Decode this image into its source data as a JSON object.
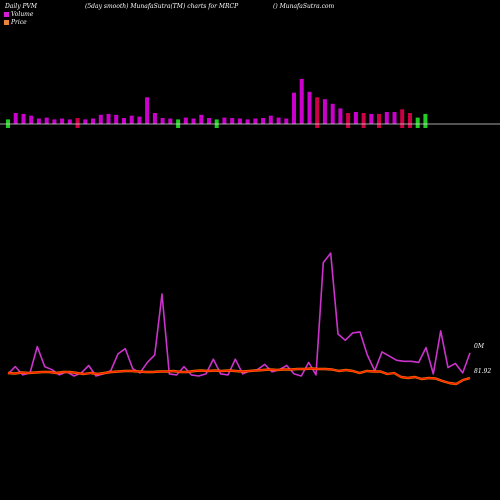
{
  "header": {
    "left": "Daily PVM",
    "center": "(5day smooth) MunafaSutra(TM) charts for MRCP",
    "right": "() MunafaSutra.com"
  },
  "legend": [
    {
      "label": "Volume",
      "color": "#d81bd8"
    },
    {
      "label": "Price",
      "color": "#e8843c"
    }
  ],
  "right_labels": {
    "volume": "0M",
    "price": "81.92"
  },
  "colors": {
    "volume_up": "#cc00cc",
    "volume_down_red": "#cc0044",
    "volume_down_green": "#22cc22",
    "volume_line": "#cc33cc",
    "price_line": "#ff2200",
    "price_line_highlight": "#ff8800",
    "baseline": "#dddddd"
  },
  "chart_data": {
    "type": "bar",
    "bars": [
      {
        "v": 1.0,
        "c": "g"
      },
      {
        "v": 2.4,
        "c": "m"
      },
      {
        "v": 2.2,
        "c": "m"
      },
      {
        "v": 1.8,
        "c": "m"
      },
      {
        "v": 1.2,
        "c": "m"
      },
      {
        "v": 1.4,
        "c": "m"
      },
      {
        "v": 1.0,
        "c": "m"
      },
      {
        "v": 1.2,
        "c": "m"
      },
      {
        "v": 1.0,
        "c": "m"
      },
      {
        "v": 1.3,
        "c": "r"
      },
      {
        "v": 1.0,
        "c": "m"
      },
      {
        "v": 1.2,
        "c": "m"
      },
      {
        "v": 2.0,
        "c": "m"
      },
      {
        "v": 2.2,
        "c": "m"
      },
      {
        "v": 2.0,
        "c": "m"
      },
      {
        "v": 1.3,
        "c": "m"
      },
      {
        "v": 1.8,
        "c": "m"
      },
      {
        "v": 1.6,
        "c": "m"
      },
      {
        "v": 5.8,
        "c": "m"
      },
      {
        "v": 2.4,
        "c": "m"
      },
      {
        "v": 1.3,
        "c": "m"
      },
      {
        "v": 1.2,
        "c": "m"
      },
      {
        "v": 1.0,
        "c": "g"
      },
      {
        "v": 1.4,
        "c": "m"
      },
      {
        "v": 1.2,
        "c": "m"
      },
      {
        "v": 2.0,
        "c": "m"
      },
      {
        "v": 1.3,
        "c": "m"
      },
      {
        "v": 1.0,
        "c": "g"
      },
      {
        "v": 1.4,
        "c": "m"
      },
      {
        "v": 1.3,
        "c": "m"
      },
      {
        "v": 1.2,
        "c": "m"
      },
      {
        "v": 1.0,
        "c": "m"
      },
      {
        "v": 1.2,
        "c": "m"
      },
      {
        "v": 1.3,
        "c": "m"
      },
      {
        "v": 1.8,
        "c": "m"
      },
      {
        "v": 1.4,
        "c": "m"
      },
      {
        "v": 1.2,
        "c": "m"
      },
      {
        "v": 6.8,
        "c": "m"
      },
      {
        "v": 9.8,
        "c": "m"
      },
      {
        "v": 7.0,
        "c": "m"
      },
      {
        "v": 5.8,
        "c": "r"
      },
      {
        "v": 5.4,
        "c": "m"
      },
      {
        "v": 4.4,
        "c": "m"
      },
      {
        "v": 3.4,
        "c": "m"
      },
      {
        "v": 2.4,
        "c": "r"
      },
      {
        "v": 2.6,
        "c": "m"
      },
      {
        "v": 2.4,
        "c": "r"
      },
      {
        "v": 2.2,
        "c": "m"
      },
      {
        "v": 2.2,
        "c": "r"
      },
      {
        "v": 2.6,
        "c": "m"
      },
      {
        "v": 2.6,
        "c": "m"
      },
      {
        "v": 3.2,
        "c": "r"
      },
      {
        "v": 2.4,
        "c": "r"
      },
      {
        "v": 1.4,
        "c": "g"
      },
      {
        "v": 2.2,
        "c": "g"
      }
    ],
    "volume_line": [
      2,
      9,
      1,
      3,
      28,
      9,
      6,
      1,
      4,
      0,
      3,
      10,
      0,
      2,
      5,
      21,
      26,
      7,
      3,
      13,
      20,
      78,
      2,
      1,
      9,
      1,
      0,
      2,
      16,
      2,
      1,
      16,
      2,
      5,
      6,
      11,
      4,
      6,
      10,
      2,
      0,
      13,
      1,
      108,
      117,
      40,
      34,
      41,
      42,
      20,
      5,
      23,
      19,
      15,
      14,
      14,
      13,
      27,
      2,
      43,
      8,
      12,
      3,
      22
    ],
    "price_line": [
      1.0,
      0.5,
      1.5,
      1.0,
      1.5,
      2.0,
      2.0,
      1.0,
      2.0,
      2.0,
      1.0,
      0.0,
      1.0,
      0.0,
      1.0,
      2.0,
      2.5,
      3.0,
      3.0,
      2.5,
      2.0,
      2.0,
      2.5,
      2.5,
      3.0,
      2.0,
      2.0,
      3.0,
      3.5,
      3.0,
      3.5,
      3.0,
      3.5,
      3.0,
      2.5,
      3.0,
      3.5,
      4.0,
      4.5,
      4.0,
      4.5,
      4.5,
      5.0,
      5.0,
      5.5,
      5.0,
      5.0,
      4.5,
      3.0,
      4.0,
      3.0,
      1.0,
      3.0,
      2.5,
      2.5,
      0.0,
      1.0,
      -3.0,
      -4.0,
      -3.0,
      -5.0,
      -4.0,
      -4.5,
      -7.0,
      -9.0,
      -10.0,
      -6.0,
      -4.0
    ]
  }
}
